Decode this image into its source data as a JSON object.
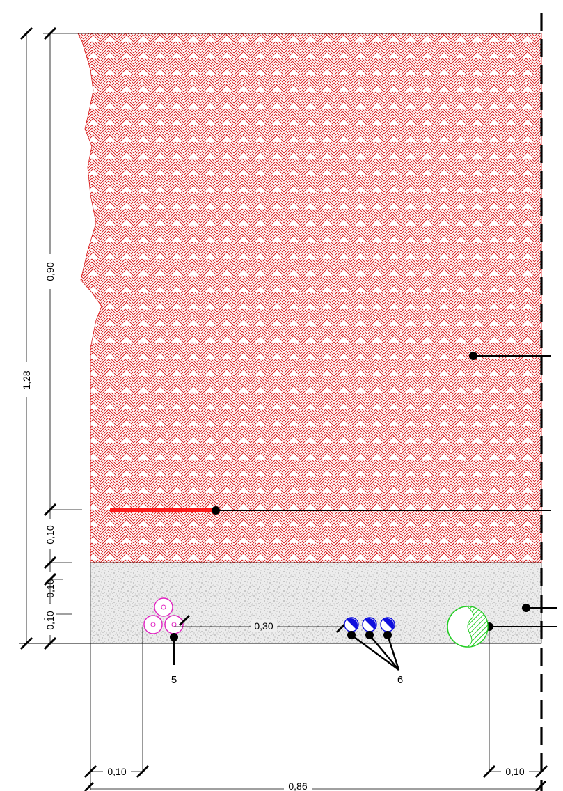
{
  "dimensions": {
    "total_height": "1,28",
    "upper_height": "0,90",
    "layer_a": "0,10",
    "layer_b": "0,10",
    "layer_c": "0,10",
    "pipe_spacing": "0,30",
    "left_offset": "0,10",
    "right_offset": "0,10",
    "total_width": "0,86"
  },
  "callouts": {
    "label_5": "5",
    "label_6": "6"
  },
  "colors": {
    "hatch": "#d81818",
    "warning_tape": "#ff1a1a",
    "conduit_magenta": "#e020c0",
    "cable_blue": "#1010dd",
    "duct_green": "#22cc22",
    "sand": "#cfcfcf",
    "line": "#000000"
  },
  "icons": {
    "backfill": "crosshatch-fill",
    "bedding": "stipple-fill",
    "conduits": "triple-circle-bundle",
    "cables": "half-filled-circle",
    "duct": "hatched-circle"
  }
}
